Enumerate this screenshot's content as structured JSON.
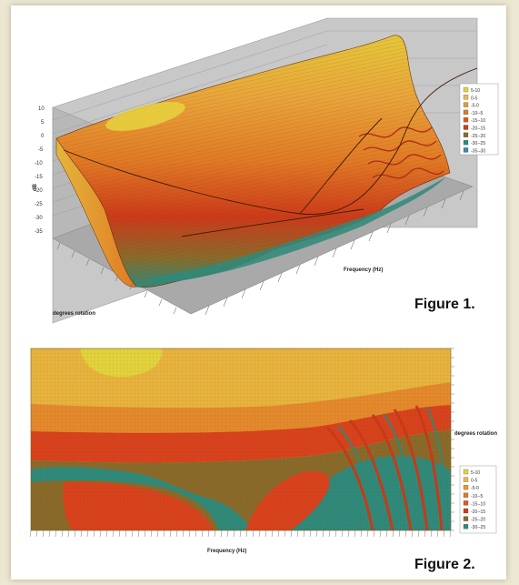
{
  "figures": {
    "figure1_label": "Figure 1.",
    "figure2_label": "Figure 2."
  },
  "colors": {
    "page_background": "#ece7d2",
    "card_background": "#ffffff",
    "wall_gray": "#c8c8c8"
  },
  "chart_data": [
    {
      "type": "surface",
      "title": "",
      "xlabel": "Frequency (Hz)",
      "ylabel": "dB",
      "depth_label": "degrees rotation",
      "zlim": [
        -35,
        10
      ],
      "z_ticks": [
        "10",
        "5",
        "0",
        "-5",
        "-10",
        "-15",
        "-20",
        "-25",
        "-30",
        "-35"
      ],
      "legend": [
        "5-10",
        "0-5",
        "-5-0",
        "-10--5",
        "-15--10",
        "-20--15",
        "-25--20",
        "-30--25",
        "-35--30"
      ],
      "legend_colors": [
        "#e3d33c",
        "#e8b84a",
        "#e39a30",
        "#e07a25",
        "#d85a1e",
        "#cc3a1a",
        "#8a6a2a",
        "#2f8a7a",
        "#3a8aa8"
      ],
      "legend_placement": "right"
    },
    {
      "type": "heatmap",
      "title": "",
      "xlabel": "Frequency (Hz)",
      "ylabel": "degrees rotation",
      "legend": [
        "5-10",
        "0-5",
        "-5-0",
        "-10--5",
        "-15--10",
        "-20--15",
        "-25--20",
        "-30--25"
      ],
      "legend_colors": [
        "#e3d33c",
        "#e8b84a",
        "#e39a30",
        "#e07a25",
        "#d85a1e",
        "#cc3a1a",
        "#8a6a2a",
        "#2f8a7a"
      ],
      "legend_placement": "right"
    }
  ]
}
